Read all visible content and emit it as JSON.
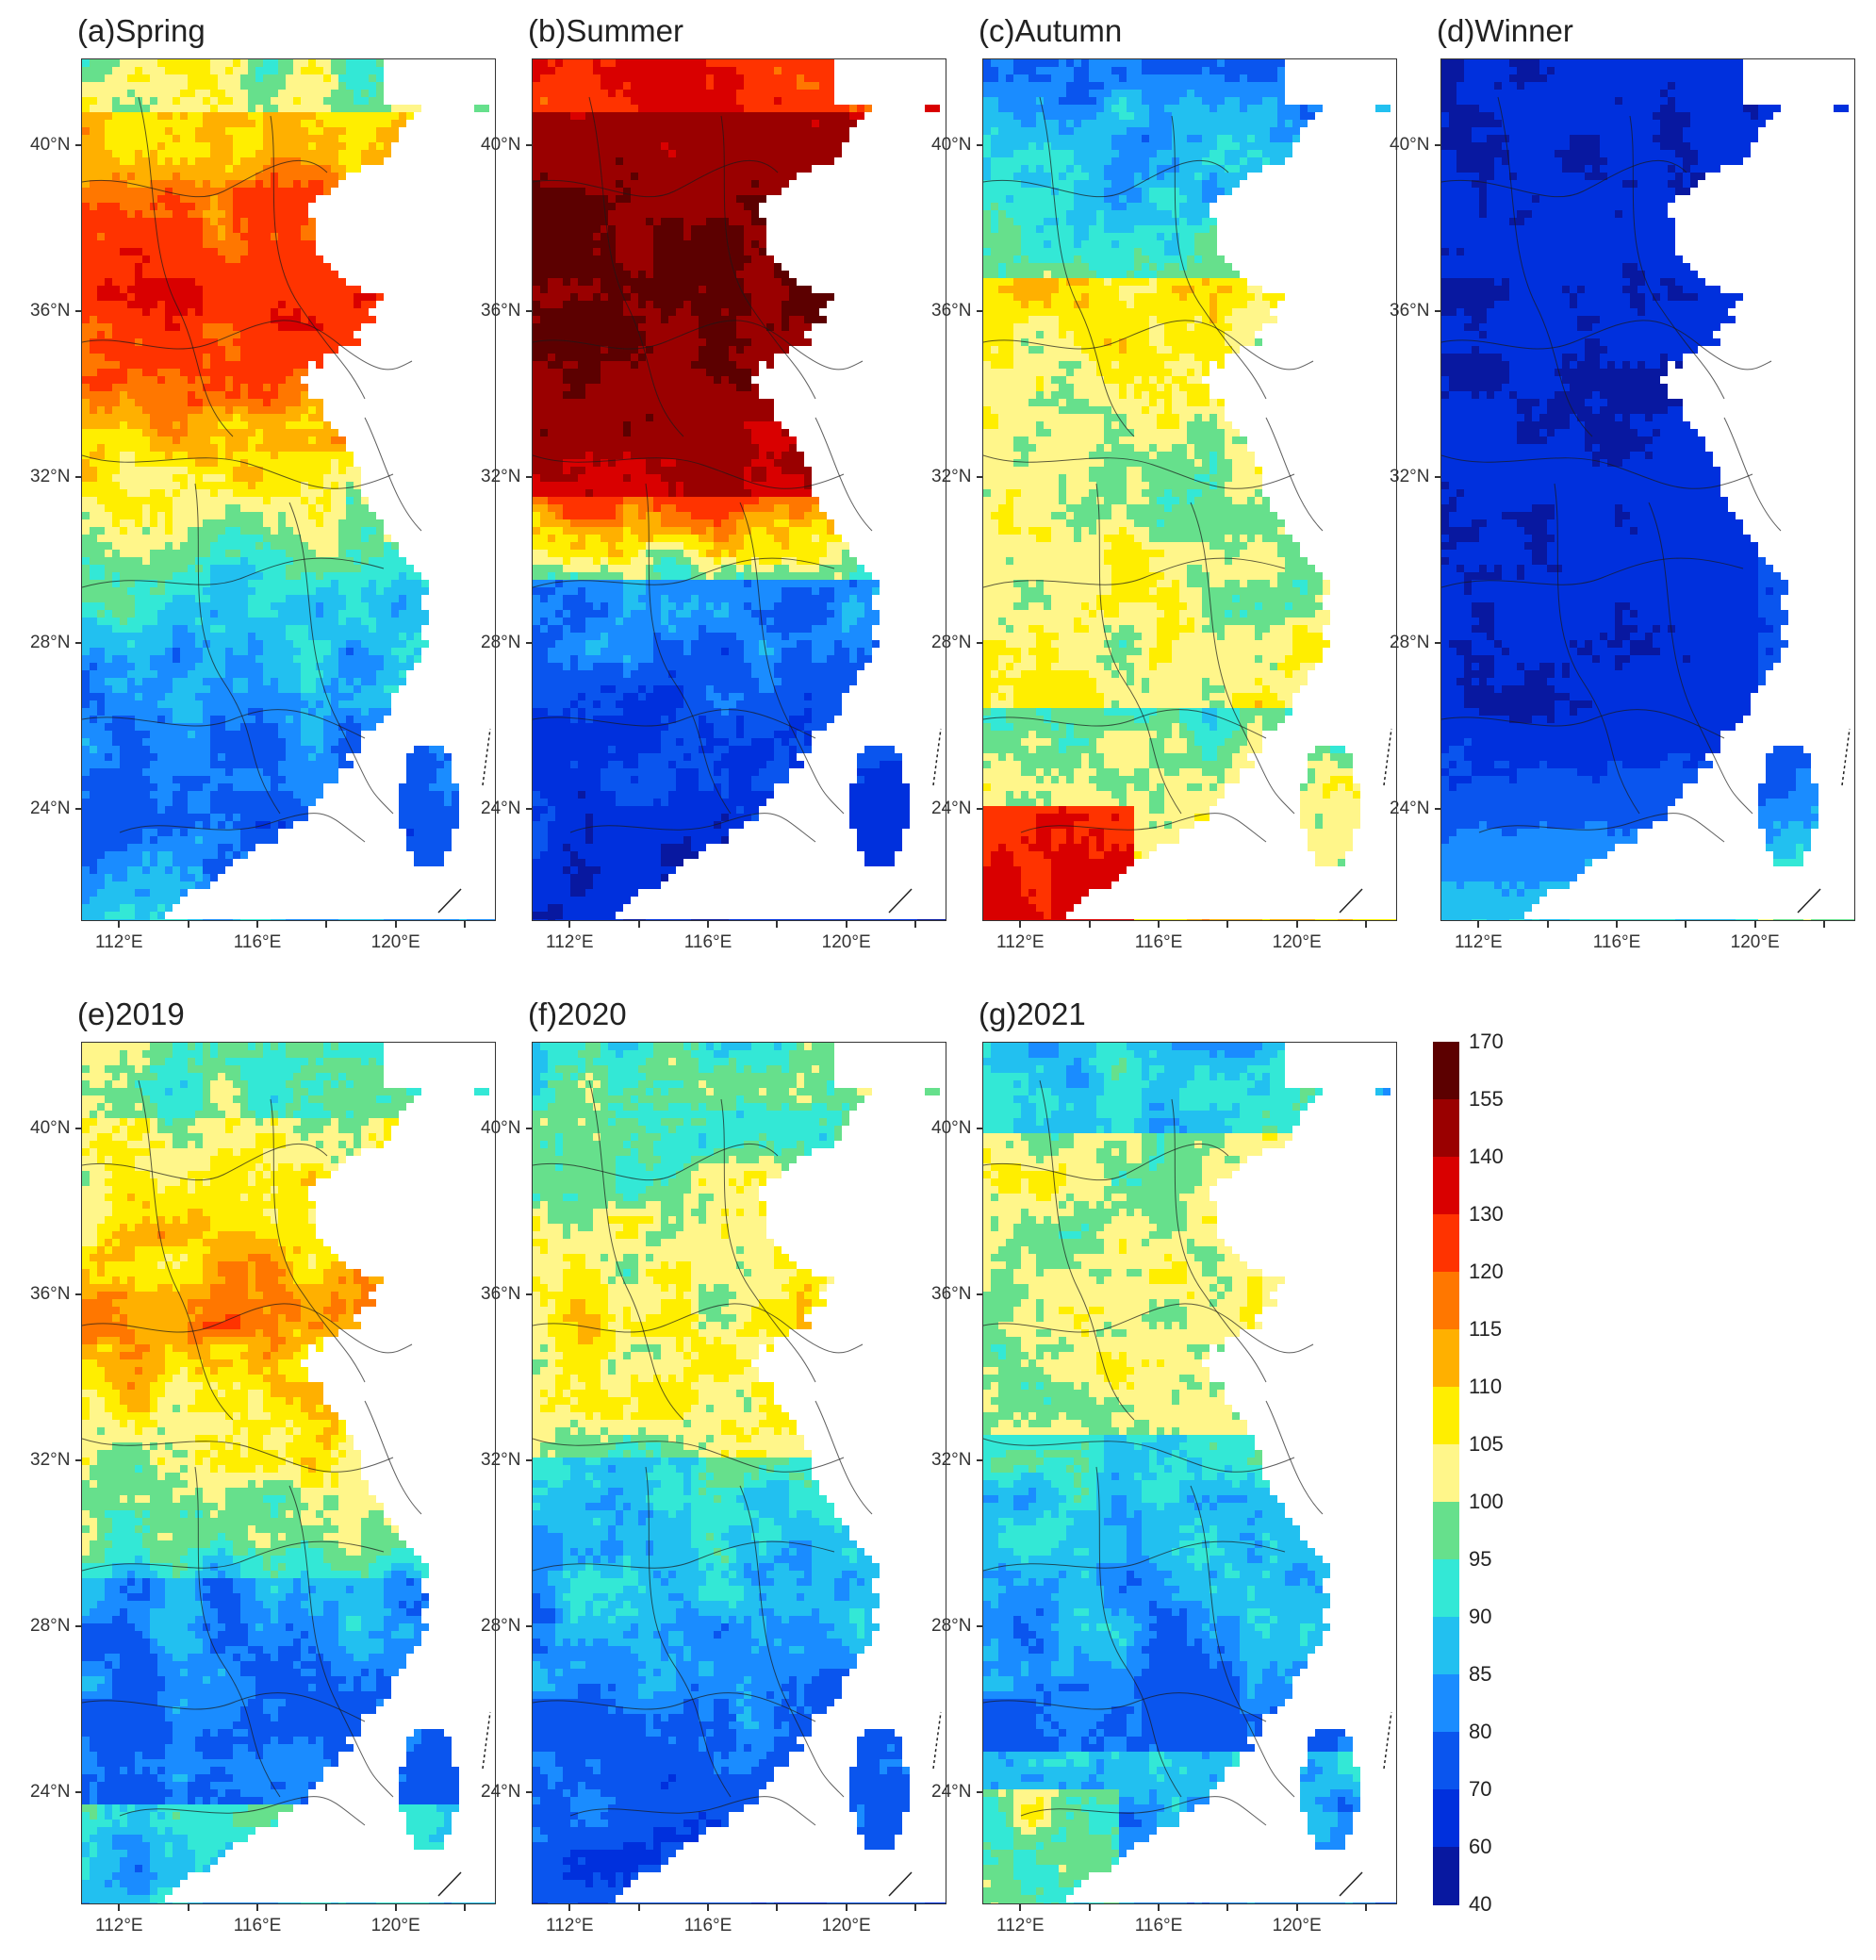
{
  "panels": [
    {
      "id": "a",
      "title": "(a)Spring",
      "scheme": "spring"
    },
    {
      "id": "b",
      "title": "(b)Summer",
      "scheme": "summer"
    },
    {
      "id": "c",
      "title": "(c)Autumn",
      "scheme": "autumn"
    },
    {
      "id": "d",
      "title": "(d)Winner",
      "scheme": "winter"
    },
    {
      "id": "e",
      "title": "(e)2019",
      "scheme": "y2019"
    },
    {
      "id": "f",
      "title": "(f)2020",
      "scheme": "y2020"
    },
    {
      "id": "g",
      "title": "(g)2021",
      "scheme": "y2021"
    }
  ],
  "axes": {
    "lat_labels": [
      "40°N",
      "36°N",
      "32°N",
      "28°N",
      "24°N"
    ],
    "lat_values": [
      40,
      36,
      32,
      28,
      24
    ],
    "lon_labels": [
      "112°E",
      "116°E",
      "120°E"
    ],
    "lon_values": [
      112,
      116,
      120
    ],
    "lat_range": [
      21.3,
      42.1
    ],
    "lon_range": [
      110.9,
      122.9
    ]
  },
  "colorbar": {
    "labels": [
      "170",
      "155",
      "140",
      "130",
      "120",
      "115",
      "110",
      "105",
      "100",
      "95",
      "90",
      "85",
      "80",
      "70",
      "60",
      "40"
    ],
    "colors": [
      "#5c0000",
      "#9a0000",
      "#d90000",
      "#ff3300",
      "#ff7700",
      "#ffb000",
      "#ffee00",
      "#fff68a",
      "#66e08c",
      "#33e8d6",
      "#22c0f0",
      "#1a8cff",
      "#0a55ee",
      "#0030dd",
      "#0818a0"
    ]
  },
  "colors": {
    "water": "#ffffff",
    "border": "#1a1a1a",
    "frame": "#333333"
  }
}
